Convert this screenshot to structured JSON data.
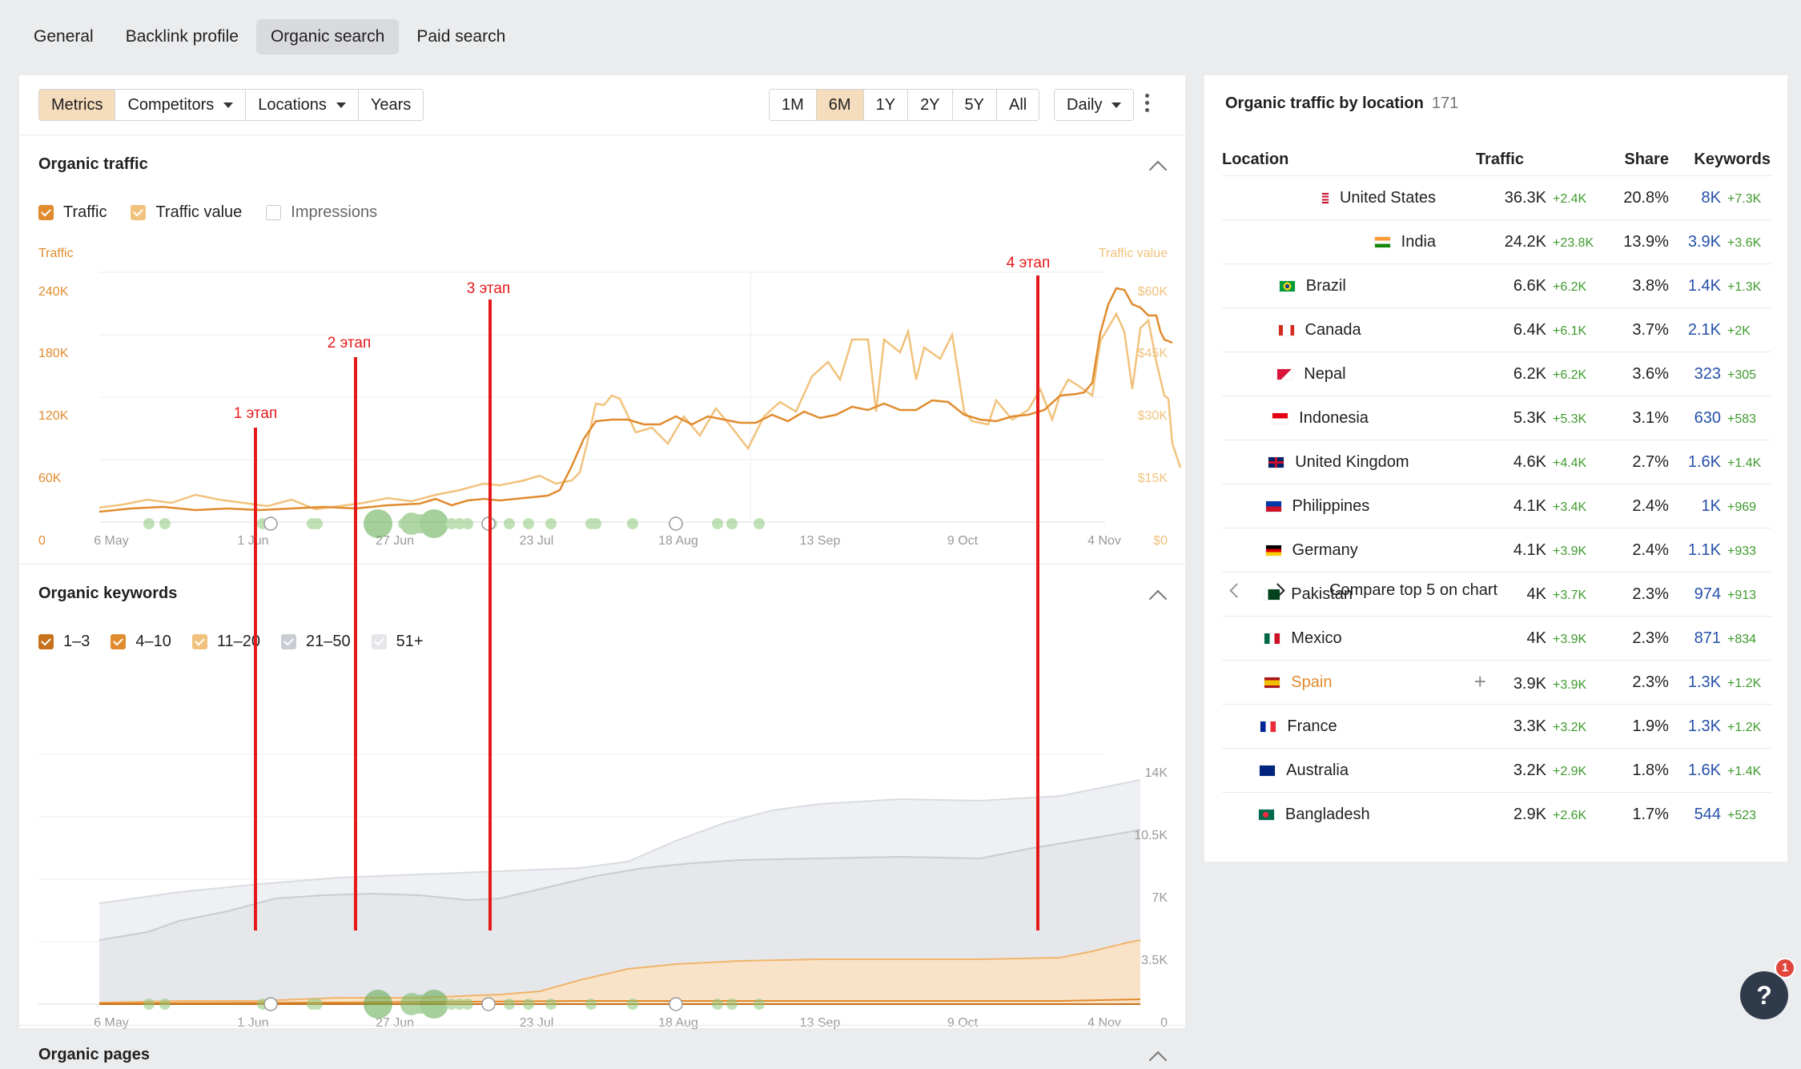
{
  "top_tabs": [
    {
      "label": "General",
      "active": false
    },
    {
      "label": "Backlink profile",
      "active": false
    },
    {
      "label": "Organic search",
      "active": true
    },
    {
      "label": "Paid search",
      "active": false
    }
  ],
  "toolbar": {
    "metrics": "Metrics",
    "competitors": "Competitors",
    "locations": "Locations",
    "years": "Years",
    "ranges": [
      "1M",
      "6M",
      "1Y",
      "2Y",
      "5Y",
      "All"
    ],
    "active_range": "6M",
    "granularity": "Daily"
  },
  "organic_traffic": {
    "title": "Organic traffic",
    "legend": {
      "traffic": "Traffic",
      "traffic_value": "Traffic value",
      "impressions": "Impressions"
    },
    "left_axis_title": "Traffic",
    "right_axis_title": "Traffic value",
    "left_ticks": [
      "240K",
      "180K",
      "120K",
      "60K",
      "0"
    ],
    "right_ticks": [
      "$60K",
      "$45K",
      "$30K",
      "$15K",
      "$0"
    ],
    "x_ticks": [
      "6 May",
      "1 Jun",
      "27 Jun",
      "23 Jul",
      "18 Aug",
      "13 Sep",
      "9 Oct",
      "4 Nov"
    ]
  },
  "organic_keywords": {
    "title": "Organic keywords",
    "legend": [
      "1–3",
      "4–10",
      "11–20",
      "21–50",
      "51+"
    ],
    "right_ticks": [
      "14K",
      "10.5K",
      "7K",
      "3.5K",
      "0"
    ],
    "x_ticks": [
      "6 May",
      "1 Jun",
      "27 Jun",
      "23 Jul",
      "18 Aug",
      "13 Sep",
      "9 Oct",
      "4 Nov"
    ]
  },
  "organic_pages": {
    "title": "Organic pages"
  },
  "stages": [
    "1 этап",
    "2 этап",
    "3 этап",
    "4 этап"
  ],
  "colors": {
    "traffic": "#e08b2e",
    "traffic_value": "#f1c27d",
    "stage_marker": "#e61919",
    "update_dot": "#8ec97a",
    "positive": "#3f9a2e",
    "link": "#2550a8"
  },
  "location_panel": {
    "title": "Organic traffic by location",
    "count": "171",
    "headers": {
      "location": "Location",
      "traffic": "Traffic",
      "share": "Share",
      "keywords": "Keywords"
    },
    "rows": [
      {
        "country": "United States",
        "flag": "us",
        "traffic": "36.3K",
        "traffic_delta": "+2.4K",
        "share": "20.8%",
        "keywords": "8K",
        "keywords_delta": "+7.3K",
        "share_value": 20.8
      },
      {
        "country": "India",
        "flag": "in",
        "traffic": "24.2K",
        "traffic_delta": "+23.8K",
        "share": "13.9%",
        "keywords": "3.9K",
        "keywords_delta": "+3.6K",
        "share_value": 13.9
      },
      {
        "country": "Brazil",
        "flag": "br",
        "traffic": "6.6K",
        "traffic_delta": "+6.2K",
        "share": "3.8%",
        "keywords": "1.4K",
        "keywords_delta": "+1.3K",
        "share_value": 3.8
      },
      {
        "country": "Canada",
        "flag": "ca",
        "traffic": "6.4K",
        "traffic_delta": "+6.1K",
        "share": "3.7%",
        "keywords": "2.1K",
        "keywords_delta": "+2K",
        "share_value": 3.7
      },
      {
        "country": "Nepal",
        "flag": "np",
        "traffic": "6.2K",
        "traffic_delta": "+6.2K",
        "share": "3.6%",
        "keywords": "323",
        "keywords_delta": "+305",
        "share_value": 3.6
      },
      {
        "country": "Indonesia",
        "flag": "id",
        "traffic": "5.3K",
        "traffic_delta": "+5.3K",
        "share": "3.1%",
        "keywords": "630",
        "keywords_delta": "+583",
        "share_value": 3.1
      },
      {
        "country": "United Kingdom",
        "flag": "gb",
        "traffic": "4.6K",
        "traffic_delta": "+4.4K",
        "share": "2.7%",
        "keywords": "1.6K",
        "keywords_delta": "+1.4K",
        "share_value": 2.7
      },
      {
        "country": "Philippines",
        "flag": "ph",
        "traffic": "4.1K",
        "traffic_delta": "+3.4K",
        "share": "2.4%",
        "keywords": "1K",
        "keywords_delta": "+969",
        "share_value": 2.4
      },
      {
        "country": "Germany",
        "flag": "de",
        "traffic": "4.1K",
        "traffic_delta": "+3.9K",
        "share": "2.4%",
        "keywords": "1.1K",
        "keywords_delta": "+933",
        "share_value": 2.4
      },
      {
        "country": "Pakistan",
        "flag": "pk",
        "traffic": "4K",
        "traffic_delta": "+3.7K",
        "share": "2.3%",
        "keywords": "974",
        "keywords_delta": "+913",
        "share_value": 2.3
      },
      {
        "country": "Mexico",
        "flag": "mx",
        "traffic": "4K",
        "traffic_delta": "+3.9K",
        "share": "2.3%",
        "keywords": "871",
        "keywords_delta": "+834",
        "share_value": 2.3
      },
      {
        "country": "Spain",
        "flag": "es",
        "traffic": "3.9K",
        "traffic_delta": "+3.9K",
        "share": "2.3%",
        "keywords": "1.3K",
        "keywords_delta": "+1.2K",
        "share_value": 2.3,
        "hovered": true
      },
      {
        "country": "France",
        "flag": "fr",
        "traffic": "3.3K",
        "traffic_delta": "+3.2K",
        "share": "1.9%",
        "keywords": "1.3K",
        "keywords_delta": "+1.2K",
        "share_value": 1.9
      },
      {
        "country": "Australia",
        "flag": "au",
        "traffic": "3.2K",
        "traffic_delta": "+2.9K",
        "share": "1.8%",
        "keywords": "1.6K",
        "keywords_delta": "+1.4K",
        "share_value": 1.8
      },
      {
        "country": "Bangladesh",
        "flag": "bd",
        "traffic": "2.9K",
        "traffic_delta": "+2.6K",
        "share": "1.7%",
        "keywords": "544",
        "keywords_delta": "+523",
        "share_value": 1.7
      }
    ],
    "compare_label": "Compare top 5 on chart"
  },
  "help": {
    "label": "?",
    "badge": "1"
  }
}
